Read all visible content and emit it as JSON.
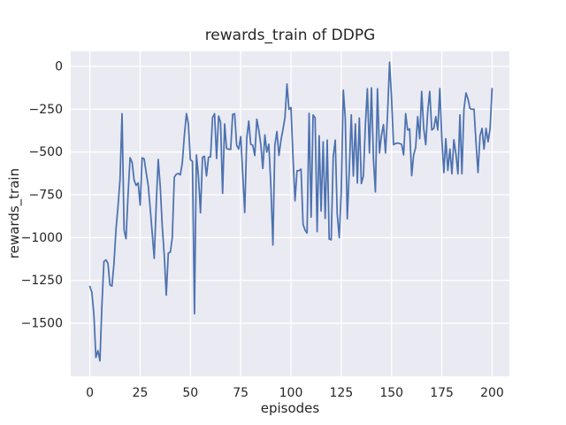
{
  "colors": {
    "figure_bg": "#ffffff",
    "axes_bg": "#eaeaf2",
    "grid": "#ffffff",
    "line": "#4c72b0",
    "text": "#262626"
  },
  "chart_data": {
    "type": "line",
    "title": "rewards_train of DDPG",
    "xlabel": "episodes",
    "ylabel": "rewards_train",
    "grid": true,
    "legend": false,
    "x_ticks": [
      0,
      25,
      50,
      75,
      100,
      125,
      150,
      175,
      200
    ],
    "y_ticks": [
      0,
      -250,
      -500,
      -750,
      -1000,
      -1250,
      -1500
    ],
    "xlim": [
      -9.5,
      208.6
    ],
    "ylim": [
      -1810,
      88
    ],
    "x_start": 0,
    "x_step": 1,
    "series": [
      {
        "name": "rewards_train",
        "color": "#4c72b0",
        "values": [
          -1285,
          -1320,
          -1450,
          -1700,
          -1660,
          -1720,
          -1400,
          -1140,
          -1130,
          -1150,
          -1276,
          -1283,
          -1150,
          -950,
          -820,
          -662,
          -276,
          -955,
          -1007,
          -750,
          -533,
          -560,
          -663,
          -695,
          -680,
          -810,
          -534,
          -540,
          -620,
          -695,
          -827,
          -973,
          -1121,
          -800,
          -543,
          -700,
          -937,
          -1100,
          -1336,
          -1090,
          -1085,
          -1000,
          -647,
          -630,
          -625,
          -634,
          -560,
          -400,
          -276,
          -335,
          -545,
          -555,
          -1445,
          -517,
          -640,
          -855,
          -530,
          -525,
          -640,
          -530,
          -528,
          -300,
          -276,
          -538,
          -290,
          -326,
          -741,
          -336,
          -480,
          -483,
          -485,
          -280,
          -276,
          -460,
          -483,
          -410,
          -620,
          -853,
          -420,
          -319,
          -455,
          -460,
          -520,
          -308,
          -370,
          -455,
          -596,
          -400,
          -500,
          -455,
          -700,
          -1043,
          -460,
          -380,
          -520,
          -430,
          -370,
          -300,
          -103,
          -250,
          -240,
          -526,
          -785,
          -610,
          -608,
          -600,
          -922,
          -956,
          -973,
          -274,
          -880,
          -284,
          -300,
          -965,
          -405,
          -845,
          -440,
          -888,
          -430,
          -1009,
          -1013,
          -526,
          -430,
          -862,
          -1000,
          -724,
          -138,
          -300,
          -890,
          -600,
          -283,
          -640,
          -336,
          -681,
          -301,
          -684,
          -640,
          -336,
          -130,
          -505,
          -125,
          -545,
          -733,
          -130,
          -505,
          -400,
          -340,
          -505,
          -280,
          25,
          -181,
          -457,
          -450,
          -448,
          -450,
          -455,
          -517,
          -276,
          -371,
          -365,
          -638,
          -517,
          -474,
          -293,
          -422,
          -146,
          -362,
          -457,
          -259,
          -146,
          -371,
          -362,
          -293,
          -371,
          -129,
          -422,
          -620,
          -422,
          -607,
          -483,
          -627,
          -428,
          -510,
          -627,
          -283,
          -627,
          -250,
          -155,
          -190,
          -245,
          -250,
          -250,
          -440,
          -620,
          -405,
          -362,
          -483,
          -362,
          -440,
          -362,
          -129
        ]
      }
    ]
  }
}
